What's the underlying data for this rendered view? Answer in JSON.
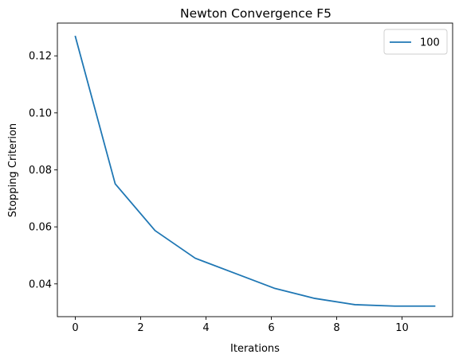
{
  "chart_data": {
    "type": "line",
    "title": "Newton Convergence F5",
    "xlabel": "Iterations",
    "ylabel": "Stopping Criterion",
    "xlim": [
      -0.55,
      11.55
    ],
    "ylim": [
      0.0285,
      0.1315
    ],
    "xticks": [
      0,
      2,
      4,
      6,
      8,
      10
    ],
    "xtick_labels": [
      "0",
      "2",
      "4",
      "6",
      "8",
      "10"
    ],
    "yticks": [
      0.04,
      0.06,
      0.08,
      0.1,
      0.12
    ],
    "ytick_labels": [
      "0.04",
      "0.06",
      "0.08",
      "0.10",
      "0.12"
    ],
    "grid": false,
    "legend_position": "top-right",
    "series": [
      {
        "name": "100",
        "color": "#1f77b4",
        "x": [
          0,
          1.22,
          2.44,
          3.67,
          4.89,
          6.11,
          7.33,
          8.56,
          9.78,
          11.0
        ],
        "y": [
          0.1268,
          0.0751,
          0.0587,
          0.049,
          0.0437,
          0.0384,
          0.0349,
          0.0327,
          0.0322,
          0.0322
        ]
      }
    ]
  }
}
